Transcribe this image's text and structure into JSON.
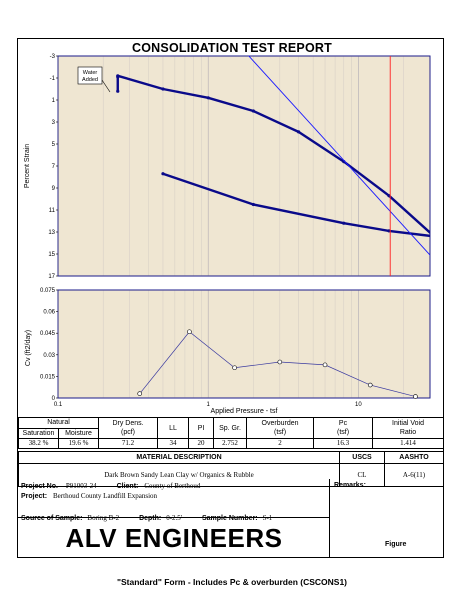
{
  "title": "CONSOLIDATION TEST REPORT",
  "strain_chart": {
    "ylabel": "Percent Strain",
    "yticks": [
      "-3",
      "-1",
      "1",
      "3",
      "5",
      "7",
      "9",
      "11",
      "13",
      "15",
      "17"
    ],
    "water_note": "Water Added",
    "colors": {
      "curve": "#0a0a8a",
      "line": "#1a1aff",
      "pc": "#ff2020",
      "bg": "#efe6d2"
    }
  },
  "cv_chart": {
    "ylabel": "Cv (ft2/day)",
    "yticks": [
      "0.075",
      "0.06",
      "0.045",
      "0.03",
      "0.015",
      "0"
    ],
    "xticks": [
      "0.1",
      "1",
      "10"
    ],
    "xlabel": "Applied Pressure - tsf"
  },
  "chart_data": [
    {
      "type": "line",
      "title": "CONSOLIDATION TEST REPORT",
      "xlabel": "Applied Pressure - tsf",
      "ylabel": "Percent Strain",
      "xscale": "log",
      "xlim": [
        0.1,
        30
      ],
      "ylim": [
        17,
        -3
      ],
      "series": [
        {
          "name": "loading",
          "x": [
            0.25,
            0.25,
            0.25,
            0.5,
            1,
            2,
            4,
            8,
            16,
            32
          ],
          "y": [
            -1.1,
            0.2,
            -1.2,
            0.0,
            0.8,
            2.0,
            3.9,
            6.6,
            9.7,
            13.4
          ]
        },
        {
          "name": "unloading",
          "x": [
            32,
            16,
            8,
            2,
            0.5
          ],
          "y": [
            13.4,
            12.9,
            12.2,
            10.5,
            7.7
          ]
        },
        {
          "name": "tangent",
          "x": [
            1.6,
            35
          ],
          "y": [
            -4,
            16.1
          ]
        },
        {
          "name": "Pc",
          "x": [
            16.3,
            16.3
          ],
          "y": [
            -3,
            17
          ]
        }
      ]
    },
    {
      "type": "line",
      "xlabel": "Applied Pressure - tsf",
      "ylabel": "Cv (ft2/day)",
      "xscale": "log",
      "xlim": [
        0.1,
        30
      ],
      "ylim": [
        0,
        0.075
      ],
      "series": [
        {
          "x": [
            0.35,
            0.75,
            1.5,
            3,
            6,
            12,
            24
          ],
          "y": [
            0.003,
            0.046,
            0.021,
            0.025,
            0.023,
            0.009,
            0.001
          ]
        }
      ]
    }
  ],
  "properties": {
    "natural_label": "Natural",
    "headers": {
      "saturation": "Saturation",
      "moisture": "Moisture",
      "dry_dens": "Dry Dens.\n(pcf)",
      "ll": "LL",
      "pi": "PI",
      "sp_gr": "Sp. Gr.",
      "overburden": "Overburden\n(tsf)",
      "pc": "Pc\n(tsf)",
      "void": "Initial Void\nRatio"
    },
    "values": {
      "saturation": "38.2 %",
      "moisture": "19.6 %",
      "dry_dens": "71.2",
      "ll": "34",
      "pi": "20",
      "sp_gr": "2.752",
      "overburden": "2",
      "pc": "16.3",
      "void": "1.414"
    }
  },
  "material": {
    "header": "MATERIAL DESCRIPTION",
    "uscs_label": "USCS",
    "aashto_label": "AASHTO",
    "description": "Dark Brown Sandy Lean Clay w/ Organics & Rubble",
    "uscs": "CL",
    "aashto": "A-6(11)"
  },
  "project": {
    "project_no_label": "Project No.",
    "project_no": "P91003-24",
    "client_label": "Client:",
    "client": "County of Berthoud",
    "project_label": "Project:",
    "project": "Berthoud County Landfill Expansion",
    "source_label": "Source of Sample:",
    "source": "Boring B-2",
    "depth_label": "Depth:",
    "depth": "0-2.5'",
    "sample_label": "Sample Number:",
    "sample": "S-1",
    "remarks_label": "Remarks:"
  },
  "company": "ALV ENGINEERS",
  "figure_label": "Figure",
  "footer": "\"Standard\" Form - Includes Pc & overburden (CSCONS1)"
}
